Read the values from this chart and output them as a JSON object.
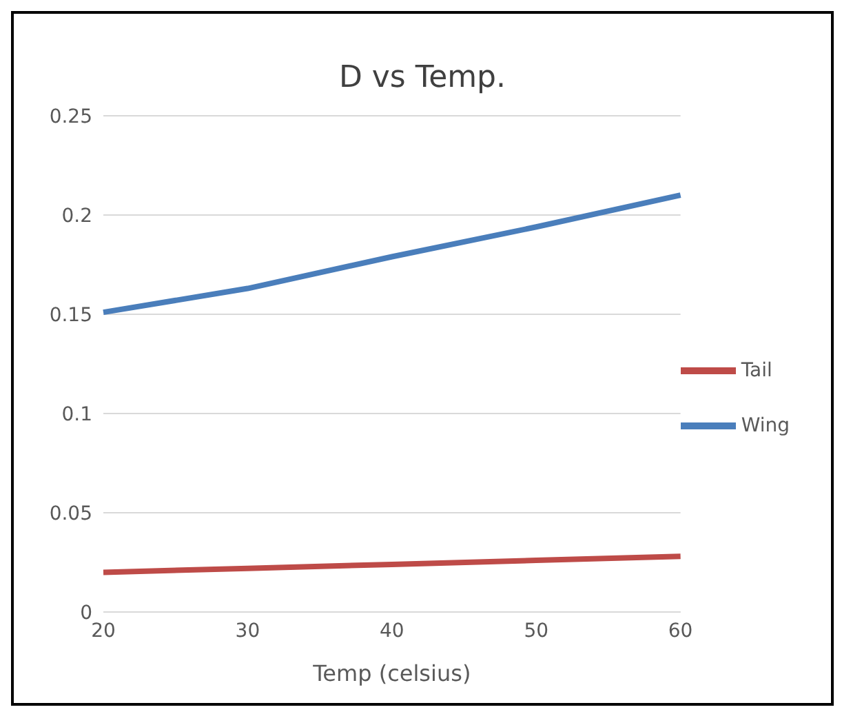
{
  "chart_data": {
    "type": "line",
    "title": "D vs Temp.",
    "xlabel": "Temp (celsius)",
    "categories": [
      "20",
      "30",
      "40",
      "50",
      "60"
    ],
    "series": [
      {
        "name": "Wing",
        "color": "#4a7ebb",
        "values": [
          0.151,
          0.163,
          0.179,
          0.194,
          0.21
        ]
      },
      {
        "name": "Tail",
        "color": "#be4b48",
        "values": [
          0.02,
          0.022,
          0.024,
          0.026,
          0.028
        ]
      }
    ],
    "ylim": [
      0,
      0.25
    ],
    "yticks": [
      0,
      0.05,
      0.1,
      0.15,
      0.2,
      0.25
    ],
    "grid": "y",
    "legend": "right",
    "marker": "none",
    "line_style": "solid"
  }
}
